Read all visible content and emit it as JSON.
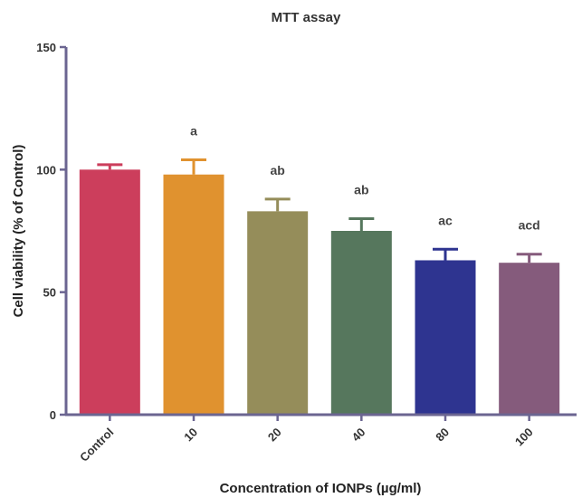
{
  "chart_data": {
    "type": "bar",
    "title": "MTT assay",
    "xlabel": "Concentration of IONPs (µg/ml)",
    "ylabel": "Cell viability (% of Control)",
    "ylim": [
      0,
      150
    ],
    "yticks": [
      "0",
      "50",
      "100",
      "150"
    ],
    "categories": [
      "Control",
      "10",
      "20",
      "40",
      "80",
      "100"
    ],
    "values": [
      100,
      98,
      83,
      75,
      63,
      62
    ],
    "errors": [
      2,
      6,
      5,
      5,
      4.5,
      3.5
    ],
    "annotations": [
      "",
      "a",
      "ab",
      "ab",
      "ac",
      "acd"
    ],
    "colors": [
      "#cc3e5c",
      "#e0922f",
      "#958d5a",
      "#56775d",
      "#2e3490",
      "#855b7c"
    ],
    "axis_color": "#6b6591",
    "grid": false,
    "legend": "none"
  }
}
